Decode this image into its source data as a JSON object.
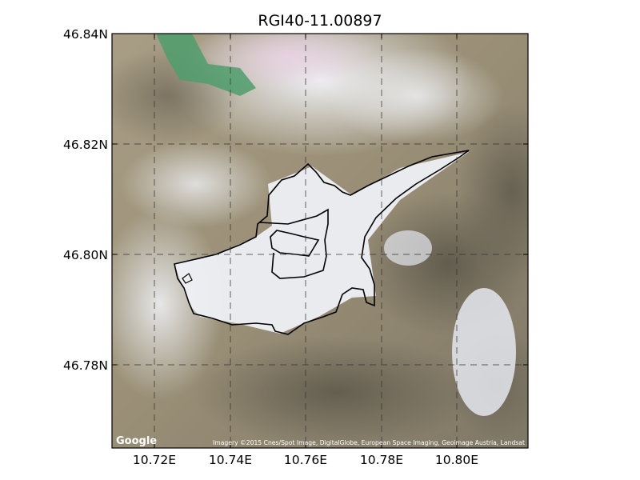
{
  "map": {
    "title": "RGI40-11.00897",
    "latitude_ticks": [
      "46.84N",
      "46.82N",
      "46.80N",
      "46.78N"
    ],
    "longitude_ticks": [
      "10.72E",
      "10.74E",
      "10.76E",
      "10.78E",
      "10.80E"
    ],
    "basemap_logo": "Google",
    "attribution": "Imagery ©2015 Cnes/Spot Image, DigitalGlobe, European Space Imaging, Geoimage Austria, Landsat",
    "grid": "dashed",
    "outline_color": "#000000"
  }
}
